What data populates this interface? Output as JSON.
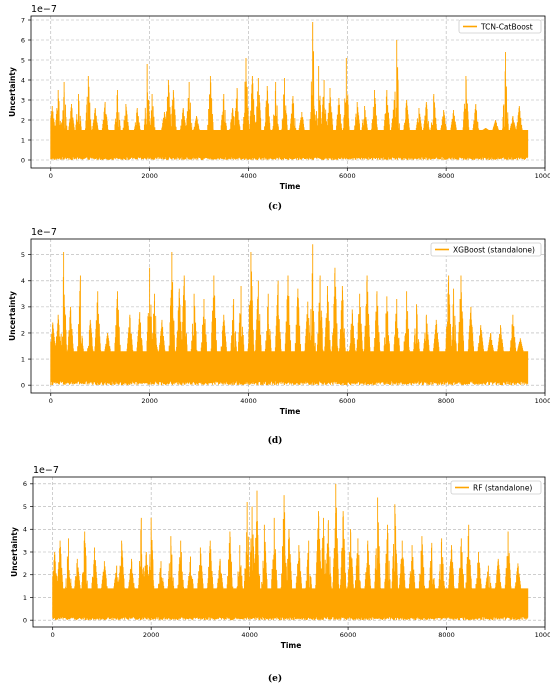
{
  "colors": {
    "series": "#FFA500",
    "grid": "#b0b0b0",
    "axes": "#000000"
  },
  "chart_data": [
    {
      "type": "line",
      "panel_caption": "(c)",
      "xlabel": "Time",
      "ylabel": "Uncertainty",
      "y_offset_label": "1e−7",
      "xlim": [
        -400,
        10000
      ],
      "ylim": [
        -0.4,
        7.2
      ],
      "x_ticks": [
        0,
        2000,
        4000,
        6000,
        8000,
        10000
      ],
      "x_tick_labels": [
        "0",
        "2000",
        "4000",
        "6000",
        "8000",
        "10000"
      ],
      "y_ticks": [
        0,
        1,
        2,
        3,
        4,
        5,
        6,
        7
      ],
      "y_tick_labels": [
        "0",
        "1",
        "2",
        "3",
        "4",
        "5",
        "6",
        "7"
      ],
      "grid": true,
      "legend_position": "top-right",
      "series": [
        {
          "name": "TCN-CatBoost",
          "x_range": [
            0,
            9650
          ],
          "baseline_band": [
            0,
            1.5
          ],
          "peaks": [
            [
              30,
              2.7
            ],
            [
              150,
              3.5
            ],
            [
              270,
              3.9
            ],
            [
              420,
              2.8
            ],
            [
              560,
              3.3
            ],
            [
              760,
              4.2
            ],
            [
              900,
              2.6
            ],
            [
              1100,
              2.9
            ],
            [
              1350,
              3.5
            ],
            [
              1520,
              2.8
            ],
            [
              1750,
              2.6
            ],
            [
              1950,
              4.8
            ],
            [
              2050,
              3.3
            ],
            [
              2300,
              2.4
            ],
            [
              2380,
              4.0
            ],
            [
              2480,
              3.5
            ],
            [
              2680,
              2.6
            ],
            [
              2800,
              3.9
            ],
            [
              2950,
              2.2
            ],
            [
              3230,
              4.2
            ],
            [
              3500,
              3.3
            ],
            [
              3680,
              2.6
            ],
            [
              3770,
              3.6
            ],
            [
              3950,
              5.1
            ],
            [
              4080,
              4.2
            ],
            [
              4200,
              4.1
            ],
            [
              4380,
              3.7
            ],
            [
              4550,
              3.9
            ],
            [
              4730,
              4.1
            ],
            [
              4900,
              3.2
            ],
            [
              5080,
              2.4
            ],
            [
              5300,
              6.9
            ],
            [
              5420,
              4.7
            ],
            [
              5530,
              4.0
            ],
            [
              5650,
              3.6
            ],
            [
              5830,
              3.1
            ],
            [
              5980,
              5.1
            ],
            [
              6200,
              2.9
            ],
            [
              6350,
              2.7
            ],
            [
              6550,
              3.5
            ],
            [
              6800,
              3.5
            ],
            [
              6950,
              3.0
            ],
            [
              7000,
              6.0
            ],
            [
              7200,
              3.0
            ],
            [
              7450,
              2.6
            ],
            [
              7600,
              2.9
            ],
            [
              7750,
              3.3
            ],
            [
              7950,
              2.5
            ],
            [
              8150,
              2.5
            ],
            [
              8400,
              4.2
            ],
            [
              8600,
              2.8
            ],
            [
              8800,
              1.6
            ],
            [
              9000,
              2.0
            ],
            [
              9200,
              5.4
            ],
            [
              9350,
              2.2
            ],
            [
              9480,
              2.7
            ]
          ]
        }
      ]
    },
    {
      "type": "line",
      "panel_caption": "(d)",
      "xlabel": "Time",
      "ylabel": "Uncertainty",
      "y_offset_label": "1e−7",
      "xlim": [
        -400,
        10000
      ],
      "ylim": [
        -0.3,
        5.6
      ],
      "x_ticks": [
        0,
        2000,
        4000,
        6000,
        8000,
        10000
      ],
      "x_tick_labels": [
        "0",
        "2000",
        "4000",
        "6000",
        "8000",
        "10000"
      ],
      "y_ticks": [
        0,
        1,
        2,
        3,
        4,
        5
      ],
      "y_tick_labels": [
        "0",
        "1",
        "2",
        "3",
        "4",
        "5"
      ],
      "grid": true,
      "legend_position": "top-right",
      "series": [
        {
          "name": "XGBoost (standalone)",
          "x_range": [
            0,
            9650
          ],
          "baseline_band": [
            0,
            1.3
          ],
          "peaks": [
            [
              40,
              2.4
            ],
            [
              150,
              2.7
            ],
            [
              260,
              5.1
            ],
            [
              400,
              3.0
            ],
            [
              600,
              4.2
            ],
            [
              800,
              2.5
            ],
            [
              950,
              3.6
            ],
            [
              1150,
              2.0
            ],
            [
              1350,
              3.6
            ],
            [
              1600,
              2.7
            ],
            [
              1800,
              2.8
            ],
            [
              2000,
              4.5
            ],
            [
              2100,
              3.5
            ],
            [
              2250,
              2.5
            ],
            [
              2450,
              5.1
            ],
            [
              2600,
              3.7
            ],
            [
              2700,
              4.2
            ],
            [
              2900,
              3.5
            ],
            [
              3100,
              3.3
            ],
            [
              3300,
              4.2
            ],
            [
              3500,
              2.7
            ],
            [
              3700,
              3.3
            ],
            [
              3850,
              3.8
            ],
            [
              4050,
              5.1
            ],
            [
              4200,
              4.0
            ],
            [
              4400,
              3.5
            ],
            [
              4600,
              4.0
            ],
            [
              4800,
              4.2
            ],
            [
              5000,
              3.7
            ],
            [
              5200,
              3.2
            ],
            [
              5300,
              5.4
            ],
            [
              5450,
              4.2
            ],
            [
              5600,
              3.8
            ],
            [
              5750,
              4.5
            ],
            [
              5900,
              3.8
            ],
            [
              6100,
              2.9
            ],
            [
              6250,
              3.5
            ],
            [
              6400,
              4.2
            ],
            [
              6600,
              3.6
            ],
            [
              6800,
              3.4
            ],
            [
              7000,
              3.3
            ],
            [
              7200,
              3.6
            ],
            [
              7400,
              3.1
            ],
            [
              7600,
              2.7
            ],
            [
              7800,
              2.5
            ],
            [
              8050,
              4.2
            ],
            [
              8150,
              3.7
            ],
            [
              8300,
              4.2
            ],
            [
              8500,
              3.0
            ],
            [
              8700,
              2.3
            ],
            [
              8900,
              2.0
            ],
            [
              9100,
              2.3
            ],
            [
              9350,
              2.7
            ],
            [
              9500,
              1.8
            ]
          ]
        }
      ]
    },
    {
      "type": "line",
      "panel_caption": "(e)",
      "xlabel": "Time",
      "ylabel": "Uncertainty",
      "y_offset_label": "1e−7",
      "xlim": [
        -400,
        10000
      ],
      "ylim": [
        -0.3,
        6.3
      ],
      "x_ticks": [
        0,
        2000,
        4000,
        6000,
        8000,
        10000
      ],
      "x_tick_labels": [
        "0",
        "2000",
        "4000",
        "6000",
        "8000",
        "10000"
      ],
      "y_ticks": [
        0,
        1,
        2,
        3,
        4,
        5,
        6
      ],
      "y_tick_labels": [
        "0",
        "1",
        "2",
        "3",
        "4",
        "5",
        "6"
      ],
      "grid": true,
      "legend_position": "top-right",
      "series": [
        {
          "name": "RF (standalone)",
          "x_range": [
            0,
            9650
          ],
          "baseline_band": [
            0,
            1.4
          ],
          "peaks": [
            [
              40,
              3.0
            ],
            [
              150,
              3.5
            ],
            [
              320,
              3.6
            ],
            [
              500,
              2.7
            ],
            [
              650,
              3.9
            ],
            [
              850,
              3.2
            ],
            [
              1050,
              2.6
            ],
            [
              1300,
              2.4
            ],
            [
              1400,
              3.5
            ],
            [
              1600,
              2.7
            ],
            [
              1800,
              4.5
            ],
            [
              1900,
              3.0
            ],
            [
              2000,
              4.5
            ],
            [
              2200,
              2.6
            ],
            [
              2400,
              3.7
            ],
            [
              2600,
              3.5
            ],
            [
              2800,
              2.8
            ],
            [
              3000,
              3.2
            ],
            [
              3200,
              3.5
            ],
            [
              3400,
              2.7
            ],
            [
              3600,
              3.9
            ],
            [
              3800,
              3.3
            ],
            [
              3950,
              5.2
            ],
            [
              4050,
              5.0
            ],
            [
              4150,
              5.7
            ],
            [
              4300,
              4.2
            ],
            [
              4500,
              4.5
            ],
            [
              4700,
              5.5
            ],
            [
              4800,
              4.0
            ],
            [
              5000,
              3.3
            ],
            [
              5200,
              3.5
            ],
            [
              5400,
              4.8
            ],
            [
              5500,
              4.5
            ],
            [
              5600,
              4.4
            ],
            [
              5750,
              6.0
            ],
            [
              5900,
              4.8
            ],
            [
              6050,
              4.0
            ],
            [
              6200,
              3.6
            ],
            [
              6400,
              3.5
            ],
            [
              6600,
              5.4
            ],
            [
              6800,
              4.2
            ],
            [
              6950,
              5.1
            ],
            [
              7100,
              3.5
            ],
            [
              7300,
              3.3
            ],
            [
              7500,
              3.7
            ],
            [
              7700,
              3.4
            ],
            [
              7900,
              3.6
            ],
            [
              8100,
              3.3
            ],
            [
              8300,
              3.6
            ],
            [
              8450,
              4.2
            ],
            [
              8650,
              3.0
            ],
            [
              8850,
              2.4
            ],
            [
              9050,
              2.7
            ],
            [
              9250,
              3.9
            ],
            [
              9450,
              2.5
            ]
          ]
        }
      ]
    }
  ]
}
